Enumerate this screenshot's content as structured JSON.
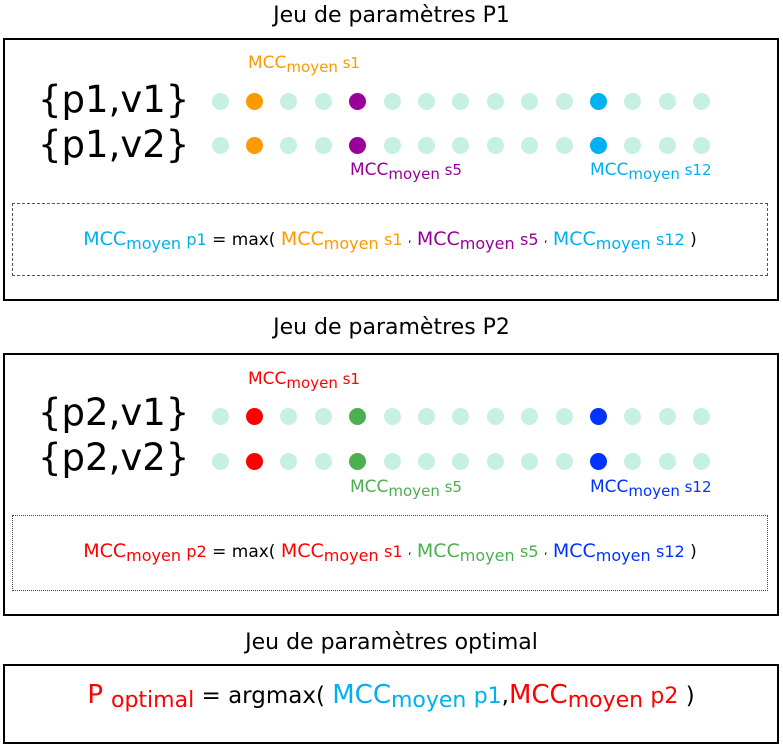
{
  "colors": {
    "inactive_dot": "#c6f0e0",
    "p1_s1": "#ff9900",
    "p1_s5": "#990099",
    "p1_s12": "#00b0f0",
    "p2_s1": "#ff0000",
    "p2_s5": "#4caf50",
    "p2_s12": "#0033ff"
  },
  "mcc_main": "MCC",
  "moyen_sub": "moyen",
  "s1": "s1",
  "s5": "s5",
  "s12": "s12",
  "p1_label": "p1",
  "p2_label": "p2",
  "eq_max": "= max(",
  "close_paren": ")",
  "comma": ",",
  "panel1": {
    "title": "Jeu de paramètres P1",
    "row1_label": "{p1,v1}",
    "row2_label": "{p1,v2}"
  },
  "panel2": {
    "title": "Jeu de paramètres P2",
    "row1_label": "{p2,v1}",
    "row2_label": "{p2,v2}"
  },
  "optimal": {
    "title": "Jeu de paramètres optimal",
    "P": "P",
    "optimal_sub": "optimal",
    "eq_argmax": "= argmax(",
    "close": ")"
  },
  "dot_rows": {
    "count": 15,
    "highlight_indices": [
      1,
      4,
      11
    ]
  }
}
